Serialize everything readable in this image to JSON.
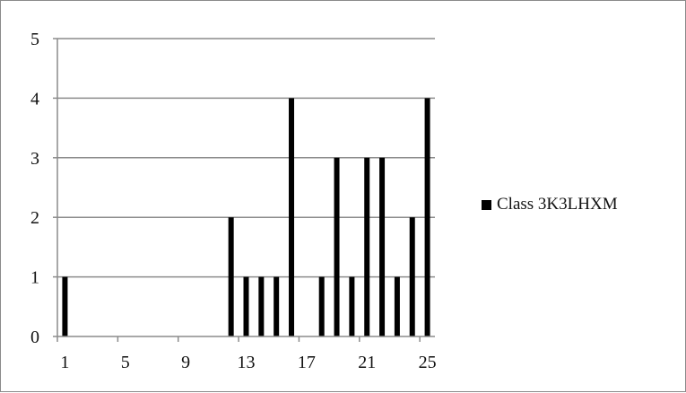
{
  "chart_data": {
    "type": "bar",
    "title": "",
    "xlabel": "",
    "ylabel": "",
    "x": [
      1,
      2,
      3,
      4,
      5,
      6,
      7,
      8,
      9,
      10,
      11,
      12,
      13,
      14,
      15,
      16,
      17,
      18,
      19,
      20,
      21,
      22,
      23,
      24,
      25
    ],
    "series": [
      {
        "name": "Class 3K3LHXM",
        "values": [
          1,
          0,
          0,
          0,
          0,
          0,
          0,
          0,
          0,
          0,
          0,
          2,
          1,
          1,
          1,
          4,
          0,
          1,
          3,
          1,
          3,
          3,
          1,
          2,
          4
        ]
      }
    ],
    "x_tick_labels": [
      "1",
      "5",
      "9",
      "13",
      "17",
      "21",
      "25"
    ],
    "y_tick_labels": [
      "0",
      "1",
      "2",
      "3",
      "4",
      "5"
    ],
    "ylim": [
      0,
      5
    ],
    "grid": "horizontal",
    "legend_position": "right",
    "bar_color": "#000000"
  }
}
